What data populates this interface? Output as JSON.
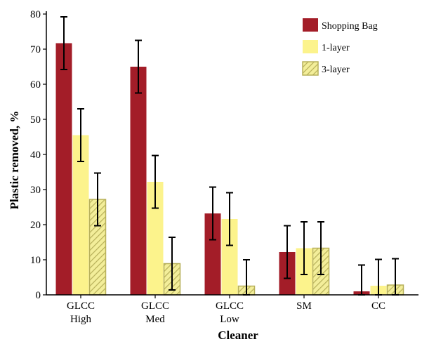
{
  "chart_data": {
    "type": "bar",
    "title": "",
    "xlabel": "Cleaner",
    "ylabel": "Plastic removed, %",
    "ylim": [
      0,
      80
    ],
    "yticks": [
      0,
      10,
      20,
      30,
      40,
      50,
      60,
      70,
      80
    ],
    "categories": [
      [
        "GLCC",
        "High"
      ],
      [
        "GLCC",
        "Med"
      ],
      [
        "GLCC",
        "Low"
      ],
      [
        "SM"
      ],
      [
        "CC"
      ]
    ],
    "series": [
      {
        "name": "Shopping Bag",
        "color": "#a31d28",
        "pattern": "solid",
        "values": [
          71.7,
          65.0,
          23.2,
          12.2,
          1.0
        ],
        "errors": [
          7.5,
          7.5,
          7.5,
          7.5,
          7.5
        ]
      },
      {
        "name": "1-layer",
        "color": "#fcf38c",
        "pattern": "solid",
        "values": [
          45.5,
          32.2,
          21.6,
          13.3,
          2.6
        ],
        "errors": [
          7.5,
          7.5,
          7.5,
          7.5,
          7.5
        ]
      },
      {
        "name": "3-layer",
        "color": "#f3ee9a",
        "pattern": "diagonal-hatch",
        "values": [
          27.2,
          8.9,
          2.5,
          13.3,
          2.8
        ],
        "errors": [
          7.5,
          7.5,
          7.5,
          7.5,
          7.5
        ]
      }
    ],
    "legend_position": "top-right",
    "grid": false
  }
}
